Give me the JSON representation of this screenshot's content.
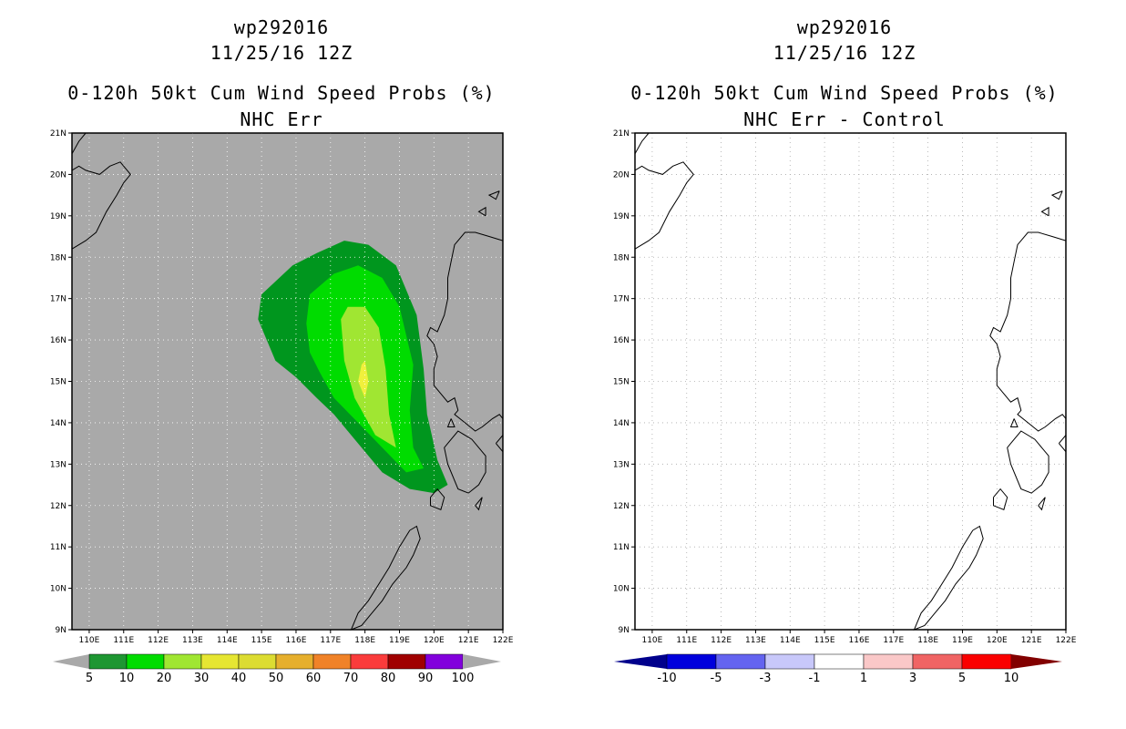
{
  "left": {
    "storm": "wp292016",
    "date": "11/25/16 12Z",
    "product": "0-120h 50kt Cum Wind Speed Probs (%)",
    "subtitle": "NHC Err",
    "background_color": "#a9a9a9",
    "colorbar": {
      "labels": [
        "5",
        "10",
        "20",
        "30",
        "40",
        "50",
        "60",
        "70",
        "80",
        "90",
        "100"
      ],
      "colors": [
        "#00901e",
        "#00dc00",
        "#a0e632",
        "#e6dc32",
        "#e6af2d",
        "#f08228",
        "#fa3c3c",
        "#f0f0f0",
        "#a00000",
        "#8200dc",
        "#aaaaaa"
      ],
      "colors_fixed": [
        "#1e9632",
        "#00dc00",
        "#a0e632",
        "#e6e632",
        "#dcdc32",
        "#e6af2d",
        "#f08228",
        "#fa3c3c",
        "#a00000",
        "#8200dc"
      ],
      "end_color": "#a9a9a9"
    },
    "contours": [
      {
        "level": 5,
        "color": "#00961e"
      },
      {
        "level": 10,
        "color": "#00dc00"
      },
      {
        "level": 20,
        "color": "#a0e632"
      },
      {
        "level": 30,
        "color": "#f0f03c"
      }
    ]
  },
  "right": {
    "storm": "wp292016",
    "date": "11/25/16 12Z",
    "product": "0-120h 50kt Cum Wind Speed Probs (%)",
    "subtitle": "NHC Err - Control",
    "background_color": "#ffffff",
    "colorbar": {
      "labels": [
        "-10",
        "-5",
        "-3",
        "-1",
        "1",
        "3",
        "5",
        "10"
      ],
      "colors": [
        "#0000dc",
        "#6464f0",
        "#c8c8fa",
        "#ffffff",
        "#fac8c8",
        "#f06464",
        "#fa0000"
      ],
      "low_end_color": "#00008c",
      "high_end_color": "#820000"
    }
  },
  "axes": {
    "lon_labels": [
      "110E",
      "111E",
      "112E",
      "113E",
      "114E",
      "115E",
      "116E",
      "117E",
      "118E",
      "119E",
      "120E",
      "121E",
      "122E"
    ],
    "lat_labels": [
      "9N",
      "10N",
      "11N",
      "12N",
      "13N",
      "14N",
      "15N",
      "16N",
      "17N",
      "18N",
      "19N",
      "20N",
      "21N"
    ],
    "lon_range": [
      109.5,
      122
    ],
    "lat_range": [
      9,
      21
    ]
  }
}
